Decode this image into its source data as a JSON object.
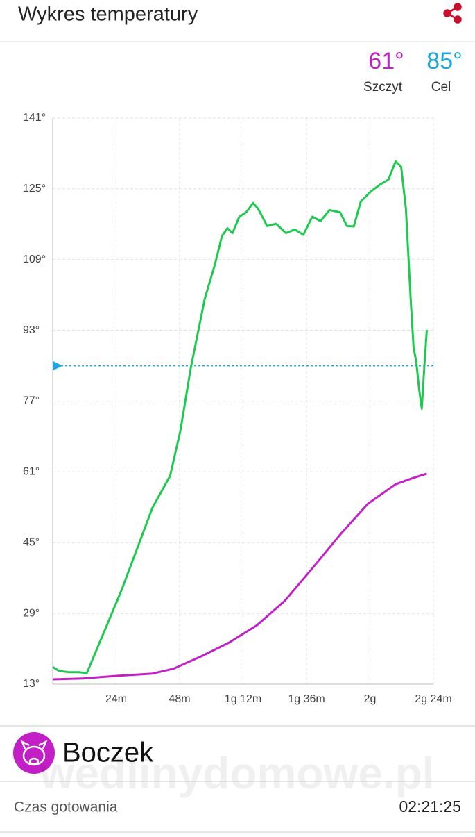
{
  "header": {
    "title": "Wykres temperatury"
  },
  "stats": [
    {
      "value": "61°",
      "label": "Szczyt",
      "color": "#c21fc7"
    },
    {
      "value": "85°",
      "label": "Cel",
      "color": "#1aa7e0"
    }
  ],
  "chart_data": {
    "type": "line",
    "xlim": [
      0,
      144
    ],
    "ylim": [
      13,
      141
    ],
    "xticks": [
      {
        "value": 24,
        "label": "24m"
      },
      {
        "value": 48,
        "label": "48m"
      },
      {
        "value": 72,
        "label": "1g 12m"
      },
      {
        "value": 96,
        "label": "1g 36m"
      },
      {
        "value": 120,
        "label": "2g"
      },
      {
        "value": 144,
        "label": "2g 24m"
      }
    ],
    "yticks": [
      {
        "value": 13,
        "label": "13°"
      },
      {
        "value": 29,
        "label": "29°"
      },
      {
        "value": 45,
        "label": "45°"
      },
      {
        "value": 61,
        "label": "61°"
      },
      {
        "value": 77,
        "label": "77°"
      },
      {
        "value": 93,
        "label": "93°"
      },
      {
        "value": 109,
        "label": "109°"
      },
      {
        "value": 125,
        "label": "125°"
      },
      {
        "value": 141,
        "label": "141°"
      }
    ],
    "grid": true,
    "target": 85,
    "target_color": "#1aa7e0",
    "series": [
      {
        "color": "#1ec94f",
        "x": [
          0,
          2.4,
          6.3,
          10.2,
          12.9,
          26,
          37.8,
          44.4,
          48.3,
          52.2,
          57.5,
          61.4,
          64,
          66.1,
          68,
          70.6,
          73.2,
          75.8,
          77.7,
          81.1,
          84.5,
          88.2,
          91.6,
          94.8,
          98.2,
          101.3,
          104.7,
          108.7,
          111.3,
          113.9,
          116.5,
          120.5,
          123.9,
          127,
          129.7,
          131.8,
          133.6,
          135.4,
          136.5,
          137.5,
          138.6,
          139.6,
          140.7,
          141.5
        ],
        "values": [
          16.9,
          16,
          15.7,
          15.7,
          15.5,
          34.2,
          53,
          60.1,
          70.3,
          84.4,
          100.1,
          108,
          114.3,
          116.1,
          115,
          118.7,
          119.7,
          121.8,
          120.5,
          116.6,
          117.1,
          115,
          115.8,
          114.6,
          118.7,
          117.7,
          120.2,
          119.7,
          116.6,
          116.5,
          122.1,
          124.5,
          126,
          127.1,
          131.2,
          130,
          120.5,
          100.1,
          89.1,
          86,
          79.7,
          75.3,
          86,
          93.1
        ]
      },
      {
        "color": "#c21fc7",
        "x": [
          0,
          11.5,
          24.7,
          37.8,
          45.7,
          56.2,
          66.7,
          77.2,
          87.7,
          98.2,
          108.7,
          119.2,
          129.7,
          136.2,
          141.5
        ],
        "values": [
          14.1,
          14.3,
          14.9,
          15.4,
          16.5,
          19.3,
          22.4,
          26.3,
          31.8,
          39.2,
          46.8,
          53.8,
          58.2,
          59.6,
          60.6
        ]
      }
    ]
  },
  "product": {
    "name": "Boczek"
  },
  "watermark": "wedlinydomowe.pl",
  "footer": {
    "label": "Czas gotowania",
    "value": "02:21:25"
  }
}
